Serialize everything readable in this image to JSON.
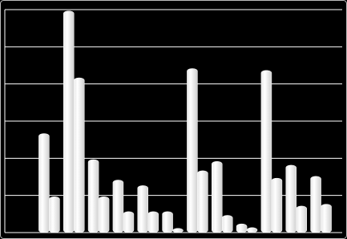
{
  "chart_data": {
    "type": "bar",
    "categories": [
      null,
      null,
      null,
      null,
      null,
      null,
      null,
      null,
      null,
      null,
      null,
      null
    ],
    "series": [
      {
        "color": "#ffffff",
        "values": [
          2.6,
          5.9,
          1.9,
          1.35,
          1.2,
          0.5,
          4.35,
          1.85,
          0.17,
          4.3,
          1.75,
          1.45
        ]
      },
      {
        "color": "#ffffff",
        "values": [
          0.9,
          4.1,
          0.9,
          0.5,
          0.5,
          0.05,
          1.6,
          0.4,
          0.07,
          1.4,
          0.65,
          0.7
        ]
      }
    ],
    "ylim": [
      0,
      6
    ],
    "yticks": [
      0,
      1,
      2,
      3,
      4,
      5,
      6
    ],
    "grid": true
  }
}
